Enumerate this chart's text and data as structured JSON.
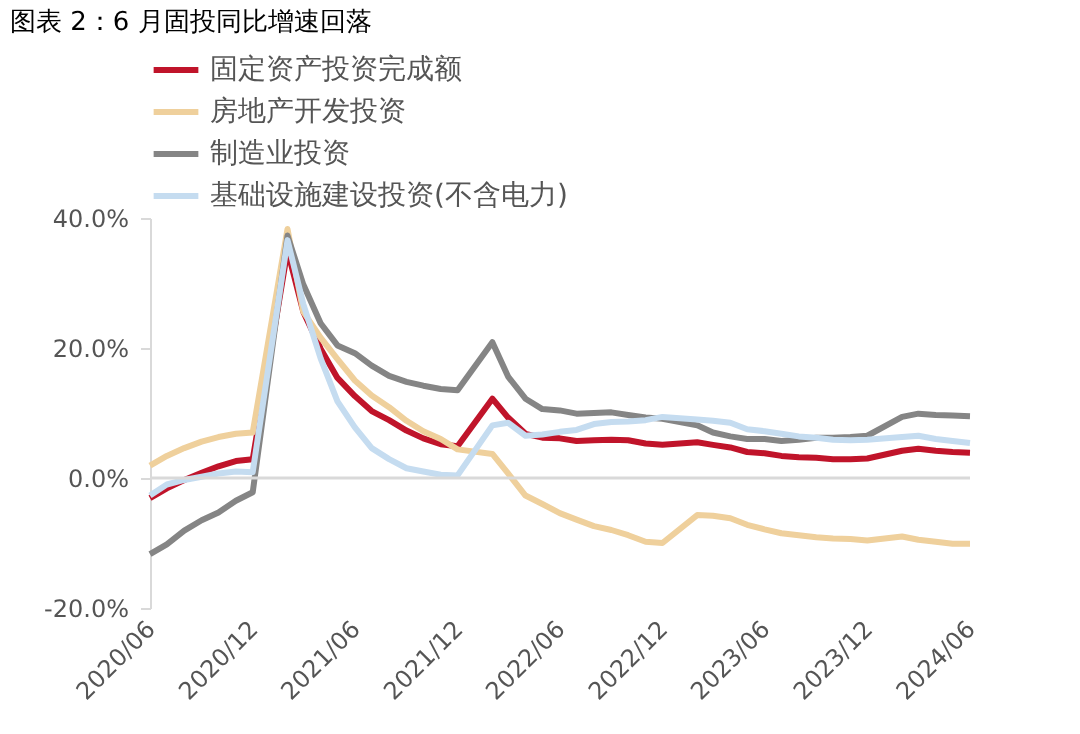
{
  "chart_data": {
    "type": "line",
    "title": "图表 2：6 月固投同比增速回落",
    "x": [
      "2020-06",
      "2020-07",
      "2020-08",
      "2020-09",
      "2020-10",
      "2020-11",
      "2020-12",
      "2021-02",
      "2021-03",
      "2021-04",
      "2021-05",
      "2021-06",
      "2021-07",
      "2021-08",
      "2021-09",
      "2021-10",
      "2021-11",
      "2021-12",
      "2022-02",
      "2022-03",
      "2022-04",
      "2022-05",
      "2022-06",
      "2022-07",
      "2022-08",
      "2022-09",
      "2022-10",
      "2022-11",
      "2022-12",
      "2023-02",
      "2023-03",
      "2023-04",
      "2023-05",
      "2023-06",
      "2023-07",
      "2023-08",
      "2023-09",
      "2023-10",
      "2023-11",
      "2023-12",
      "2024-02",
      "2024-03",
      "2024-04",
      "2024-05",
      "2024-06"
    ],
    "series": [
      {
        "name": "固定资产投资完成额",
        "color": "#c0142a",
        "values": [
          -3.1,
          -1.6,
          -0.3,
          0.8,
          1.8,
          2.6,
          2.9,
          35.0,
          25.6,
          19.9,
          15.4,
          12.6,
          10.3,
          8.9,
          7.3,
          6.1,
          5.2,
          4.9,
          12.2,
          9.3,
          6.8,
          6.2,
          6.1,
          5.7,
          5.8,
          5.9,
          5.8,
          5.3,
          5.1,
          5.5,
          5.1,
          4.7,
          4.0,
          3.8,
          3.4,
          3.2,
          3.1,
          2.9,
          2.9,
          3.0,
          4.2,
          4.5,
          4.2,
          4.0,
          3.9
        ]
      },
      {
        "name": "房地产开发投资",
        "color": "#efd09c",
        "values": [
          1.9,
          3.4,
          4.6,
          5.6,
          6.3,
          6.8,
          7.0,
          38.3,
          25.6,
          21.6,
          18.3,
          15.0,
          12.7,
          10.9,
          8.8,
          7.2,
          6.0,
          4.4,
          3.7,
          0.7,
          -2.7,
          -4.0,
          -5.4,
          -6.4,
          -7.4,
          -8.0,
          -8.8,
          -9.8,
          -10.0,
          -5.7,
          -5.8,
          -6.2,
          -7.2,
          -7.9,
          -8.5,
          -8.8,
          -9.1,
          -9.3,
          -9.4,
          -9.6,
          -9.0,
          -9.5,
          -9.8,
          -10.1,
          -10.1
        ]
      },
      {
        "name": "制造业投资",
        "color": "#858585",
        "values": [
          -11.7,
          -10.2,
          -8.1,
          -6.5,
          -5.3,
          -3.5,
          -2.2,
          37.3,
          29.8,
          23.8,
          20.4,
          19.2,
          17.3,
          15.7,
          14.8,
          14.2,
          13.7,
          13.5,
          20.9,
          15.6,
          12.2,
          10.6,
          10.4,
          9.9,
          10.0,
          10.1,
          9.7,
          9.3,
          9.1,
          8.1,
          7.0,
          6.4,
          6.0,
          6.0,
          5.7,
          5.9,
          6.2,
          6.2,
          6.3,
          6.5,
          9.4,
          9.9,
          9.7,
          9.6,
          9.5
        ]
      },
      {
        "name": "基础设施建设投资(不含电力)",
        "color": "#c5dcf0",
        "values": [
          -2.7,
          -1.0,
          -0.3,
          0.2,
          0.7,
          1.0,
          0.9,
          36.6,
          26.8,
          18.4,
          11.8,
          7.8,
          4.6,
          2.9,
          1.5,
          1.0,
          0.5,
          0.4,
          8.1,
          8.5,
          6.5,
          6.7,
          7.1,
          7.4,
          8.3,
          8.6,
          8.7,
          8.9,
          9.4,
          9.0,
          8.8,
          8.5,
          7.5,
          7.2,
          6.8,
          6.4,
          6.2,
          5.9,
          5.8,
          5.9,
          6.3,
          6.5,
          6.0,
          5.7,
          5.4
        ]
      }
    ],
    "xlim": [
      "2020-06",
      "2024-06"
    ],
    "xticks": [
      {
        "value": "2020-06",
        "label": "2020/06"
      },
      {
        "value": "2020-12",
        "label": "2020/12"
      },
      {
        "value": "2021-06",
        "label": "2021/06"
      },
      {
        "value": "2021-12",
        "label": "2021/12"
      },
      {
        "value": "2022-06",
        "label": "2022/06"
      },
      {
        "value": "2022-12",
        "label": "2022/12"
      },
      {
        "value": "2023-06",
        "label": "2023/06"
      },
      {
        "value": "2023-12",
        "label": "2023/12"
      },
      {
        "value": "2024-06",
        "label": "2024/06"
      }
    ],
    "ylim": [
      -20,
      40
    ],
    "yticks": [
      {
        "value": -20,
        "label": "-20.0%"
      },
      {
        "value": 0,
        "label": "0.0%"
      },
      {
        "value": 20,
        "label": "20.0%"
      },
      {
        "value": 40,
        "label": "40.0%"
      }
    ],
    "ref_lines": [
      {
        "axis": "y",
        "value": 0,
        "color": "#d9d9d9"
      }
    ],
    "grid": false,
    "legend": "top",
    "marker": "none",
    "line_style": "solid"
  }
}
